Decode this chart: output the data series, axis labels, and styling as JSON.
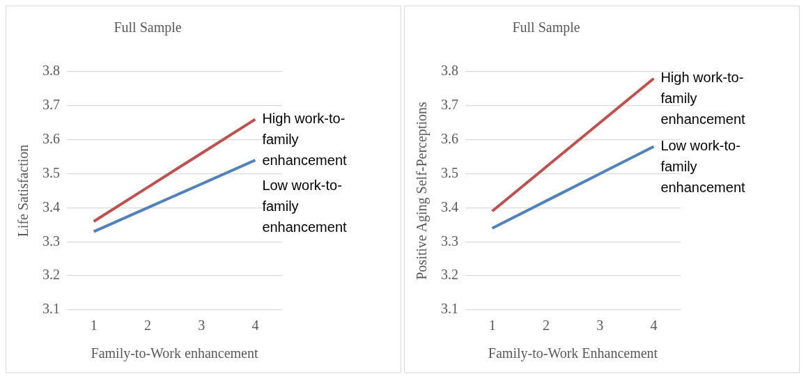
{
  "chart_data": [
    {
      "type": "line",
      "title": "Full Sample",
      "xlabel": "Family-to-Work enhancement",
      "ylabel": "Life Satisfaction",
      "categories": [
        "1",
        "2",
        "3",
        "4"
      ],
      "ylim": [
        3.1,
        3.8
      ],
      "yticks": [
        3.1,
        3.2,
        3.3,
        3.4,
        3.5,
        3.6,
        3.7,
        3.8
      ],
      "grid": "y",
      "legend": false,
      "marker": "none",
      "series": [
        {
          "name": "High work-to-family enhancement",
          "color": "#c0504d",
          "values": [
            3.36,
            3.46,
            3.56,
            3.66
          ]
        },
        {
          "name": "Low work-to-family enhancement",
          "color": "#4f81bd",
          "values": [
            3.33,
            3.4,
            3.47,
            3.54
          ]
        }
      ]
    },
    {
      "type": "line",
      "title": "Full Sample",
      "xlabel": "Family-to-Work Enhancement",
      "ylabel": "Positive Aging Self-Perceptions",
      "categories": [
        "1",
        "2",
        "3",
        "4"
      ],
      "ylim": [
        3.1,
        3.8
      ],
      "yticks": [
        3.1,
        3.2,
        3.3,
        3.4,
        3.5,
        3.6,
        3.7,
        3.8
      ],
      "grid": "y",
      "legend": false,
      "marker": "none",
      "series": [
        {
          "name": "High work-to-family enhancement",
          "color": "#c0504d",
          "values": [
            3.39,
            3.52,
            3.65,
            3.78
          ]
        },
        {
          "name": "Low work-to-family enhancement",
          "color": "#4f81bd",
          "values": [
            3.34,
            3.42,
            3.5,
            3.58
          ]
        }
      ]
    }
  ]
}
